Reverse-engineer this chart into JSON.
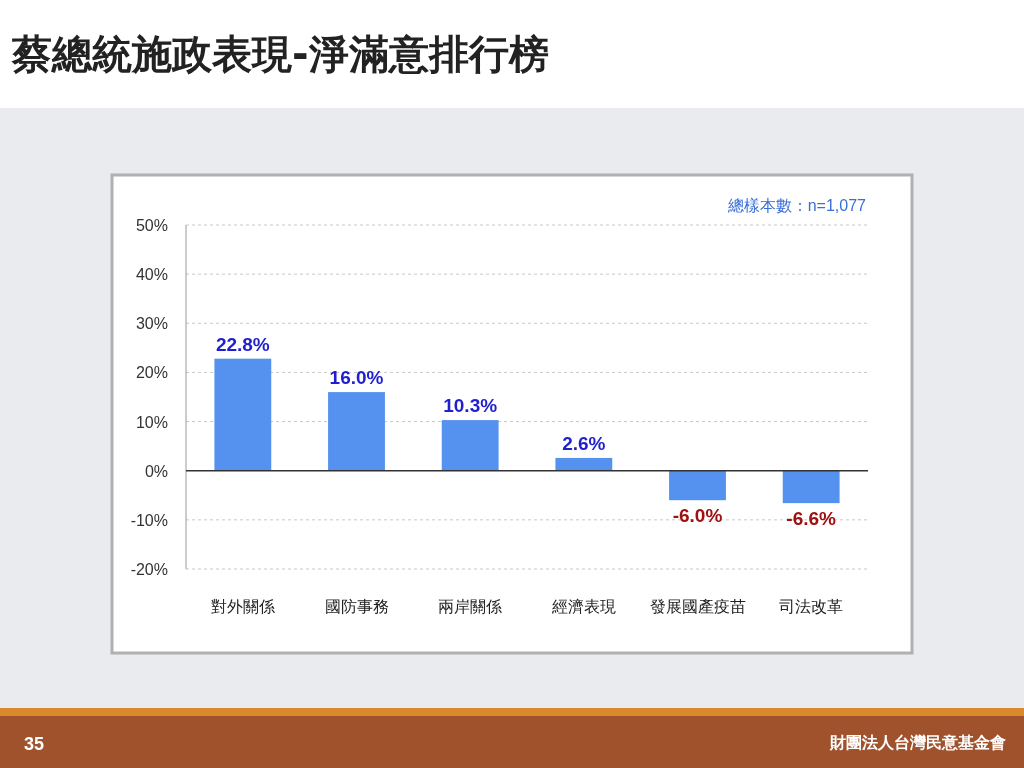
{
  "chart_data": {
    "type": "bar",
    "title": "蔡總統施政表現-淨滿意排行榜",
    "categories": [
      "對外關係",
      "國防事務",
      "兩岸關係",
      "經濟表現",
      "發展國產疫苗",
      "司法改革"
    ],
    "values": [
      22.8,
      16.0,
      10.3,
      2.6,
      -6.0,
      -6.6
    ],
    "color": "#5591ee",
    "value_labels": [
      "22.8%",
      "16.0%",
      "10.3%",
      "2.6%",
      "-6.0%",
      "-6.6%"
    ],
    "ylim": [
      -20,
      50
    ],
    "yticks": [
      {
        "value": -20,
        "label": "-20%"
      },
      {
        "value": -10,
        "label": "-10%"
      },
      {
        "value": 0,
        "label": "0%"
      },
      {
        "value": 10,
        "label": "10%"
      },
      {
        "value": 20,
        "label": "20%"
      },
      {
        "value": 30,
        "label": "30%"
      },
      {
        "value": 40,
        "label": "40%"
      },
      {
        "value": 50,
        "label": "50%"
      }
    ],
    "grid": "y",
    "annotations": [
      "總樣本數：n=1,077",
      "35",
      "財團法人台灣民意基金會"
    ]
  }
}
